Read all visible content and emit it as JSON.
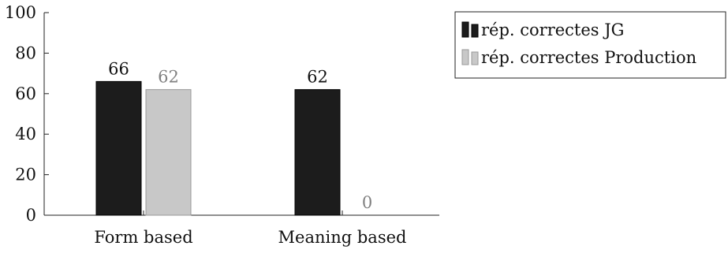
{
  "chart_data": {
    "type": "bar",
    "categories": [
      "Form based",
      "Meaning based"
    ],
    "series": [
      {
        "name": "rép. correctes JG",
        "values": [
          66,
          62
        ],
        "color": "#1c1c1c",
        "label_color": "#111111"
      },
      {
        "name": "rép. correctes Production",
        "values": [
          62,
          0
        ],
        "color": "#c8c8c8",
        "label_color": "#808080"
      }
    ],
    "ylim": [
      0,
      100
    ],
    "yticks": [
      0,
      20,
      40,
      60,
      80,
      100
    ],
    "title": "",
    "xlabel": "",
    "ylabel": "",
    "grid": false,
    "legend_position": "top-right"
  }
}
